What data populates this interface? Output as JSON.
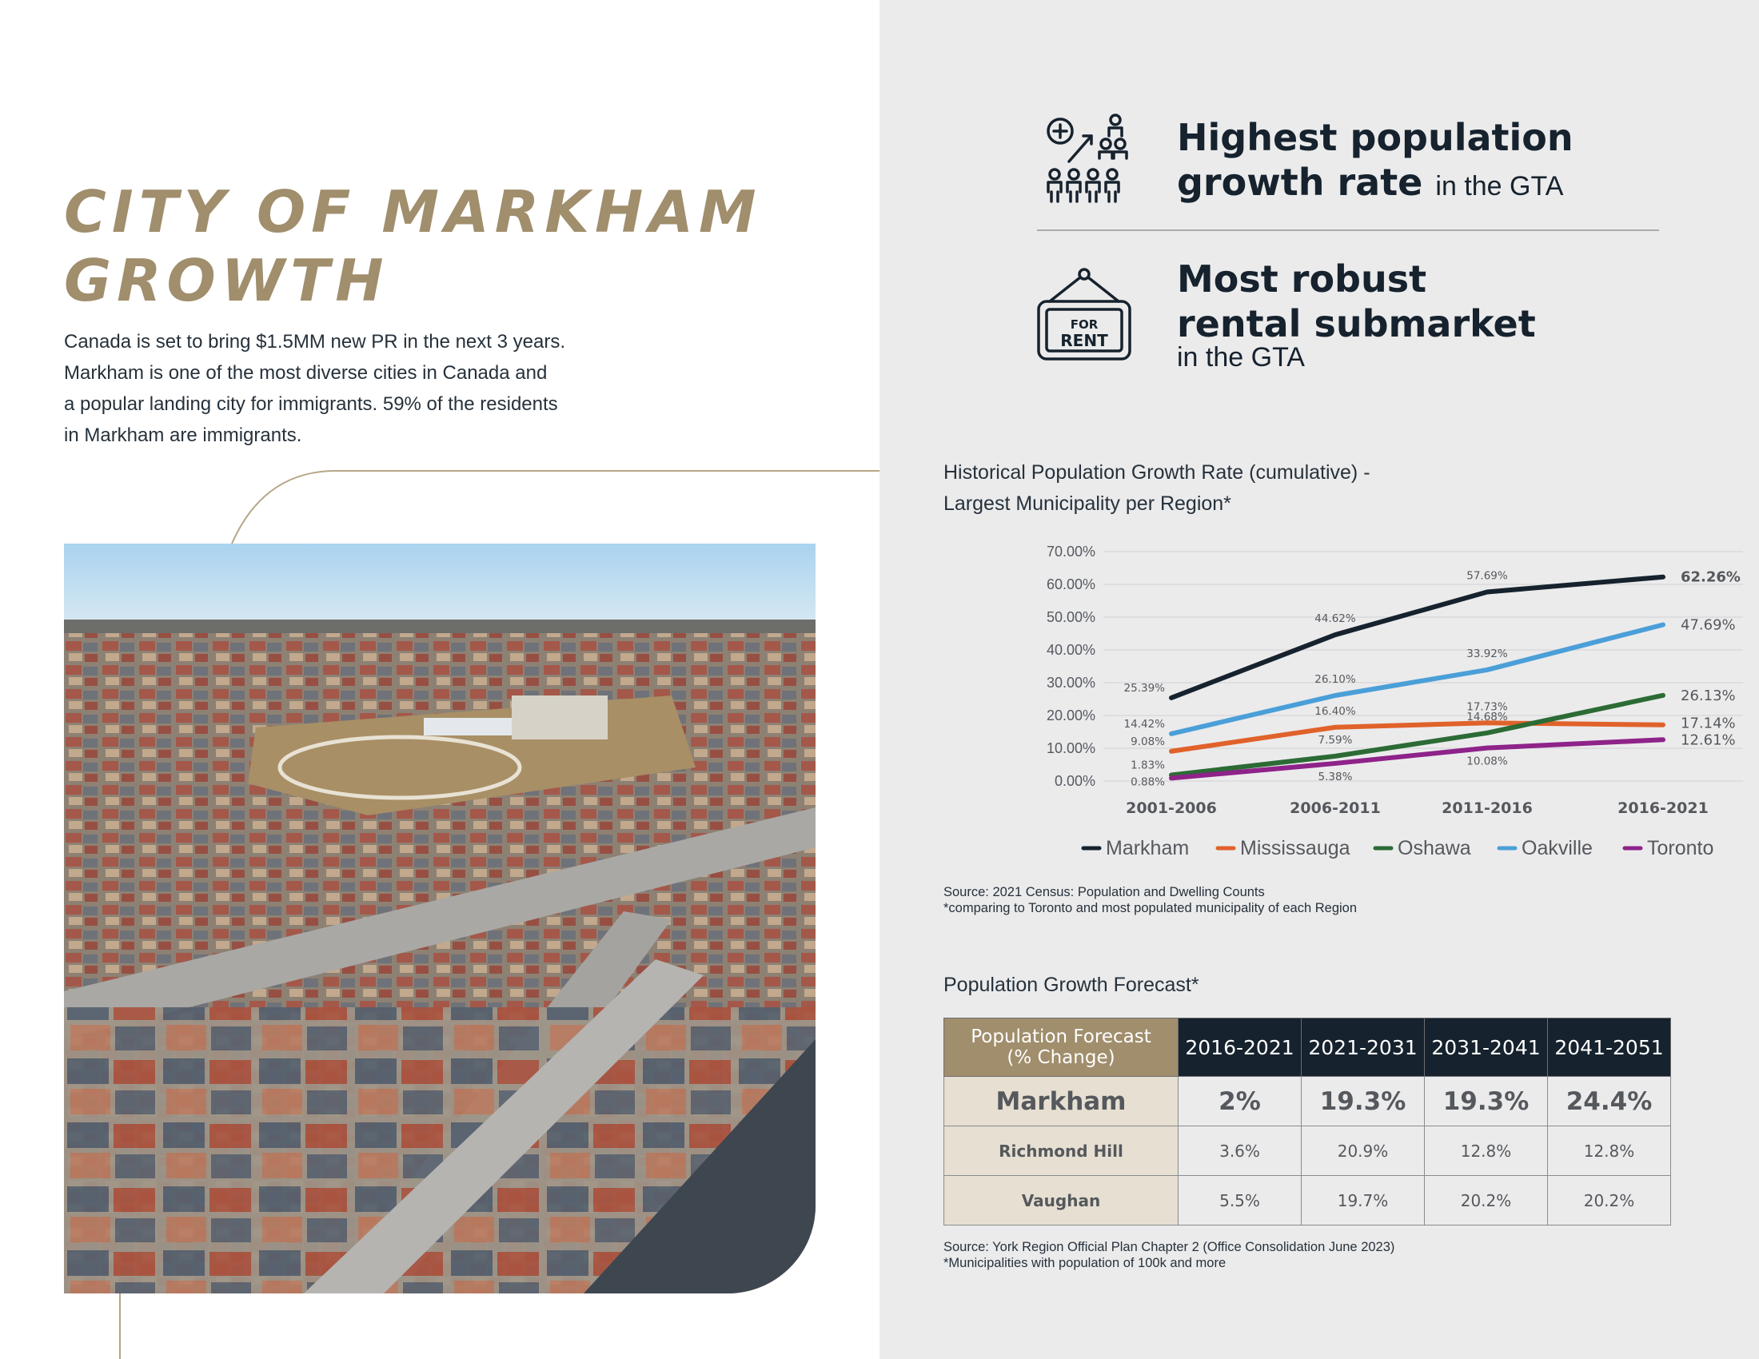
{
  "left": {
    "title_lines": [
      "CITY OF MARKHAM",
      "GROWTH"
    ],
    "intro_lines": [
      "Canada is set to bring $1.5MM new PR in the next 3 years.",
      "Markham is one of the most diverse cities in Canada and",
      "a popular landing city for immigrants. 59% of the residents",
      "in Markham are immigrants."
    ],
    "photo": {
      "subject": "aerial-view-of-markham-neighbourhood"
    }
  },
  "features": [
    {
      "icon": "population-growth-icon",
      "head_line1": "Highest population",
      "head_line2": "growth rate",
      "suffix": "in the GTA"
    },
    {
      "icon": "for-rent-sign-icon",
      "sign_text_1": "FOR",
      "sign_text_2": "RENT",
      "head_line1": "Most robust",
      "head_line2": "rental submarket",
      "sub": "in the GTA"
    }
  ],
  "chart_data": {
    "type": "line",
    "title_lines": [
      "Historical Population Growth Rate (cumulative) -",
      "Largest Municipality per Region*"
    ],
    "categories": [
      "2001-2006",
      "2006-2011",
      "2011-2016",
      "2016-2021"
    ],
    "ylim": [
      0,
      70
    ],
    "yticks": [
      "0.00%",
      "10.00%",
      "20.00%",
      "30.00%",
      "40.00%",
      "50.00%",
      "60.00%",
      "70.00%"
    ],
    "grid": true,
    "legend_position": "bottom",
    "series": [
      {
        "name": "Markham",
        "color": "#16222d",
        "values": [
          25.39,
          44.62,
          57.69,
          62.26
        ],
        "labels": [
          "25.39%",
          "44.62%",
          "57.69%",
          "62.26%"
        ]
      },
      {
        "name": "Mississauga",
        "color": "#e0622a",
        "values": [
          9.08,
          16.4,
          17.73,
          17.14
        ],
        "labels": [
          "9.08%",
          "16.40%",
          "17.73%",
          "17.14%"
        ]
      },
      {
        "name": "Oshawa",
        "color": "#2c6b35",
        "values": [
          1.83,
          7.59,
          14.68,
          26.13
        ],
        "labels": [
          "1.83%",
          "7.59%",
          "14.68%",
          "26.13%"
        ]
      },
      {
        "name": "Oakville",
        "color": "#4b9fd8",
        "values": [
          14.42,
          26.1,
          33.92,
          47.69
        ],
        "labels": [
          "14.42%",
          "26.10%",
          "33.92%",
          "47.69%"
        ]
      },
      {
        "name": "Toronto",
        "color": "#8e2389",
        "values": [
          0.88,
          5.38,
          10.08,
          12.61
        ],
        "labels": [
          "0.88%",
          "5.38%",
          "10.08%",
          "12.61%"
        ]
      }
    ]
  },
  "chart_source_lines": [
    "Source: 2021 Census: Population and Dwelling Counts",
    "*comparing to Toronto and most populated municipality of each Region"
  ],
  "forecast": {
    "title": "Population Growth Forecast*",
    "corner_line1": "Population Forecast",
    "corner_line2": "(% Change)",
    "columns": [
      "2016-2021",
      "2021-2031",
      "2031-2041",
      "2041-2051"
    ],
    "rows": [
      {
        "name": "Markham",
        "values": [
          "2%",
          "19.3%",
          "19.3%",
          "24.4%"
        ]
      },
      {
        "name": "Richmond Hill",
        "values": [
          "3.6%",
          "20.9%",
          "12.8%",
          "12.8%"
        ]
      },
      {
        "name": "Vaughan",
        "values": [
          "5.5%",
          "19.7%",
          "20.2%",
          "20.2%"
        ]
      }
    ],
    "source_lines": [
      "Source: York Region Official Plan Chapter 2 (Office Consolidation June 2023)",
      "*Municipalities with population of 100k and more"
    ]
  }
}
